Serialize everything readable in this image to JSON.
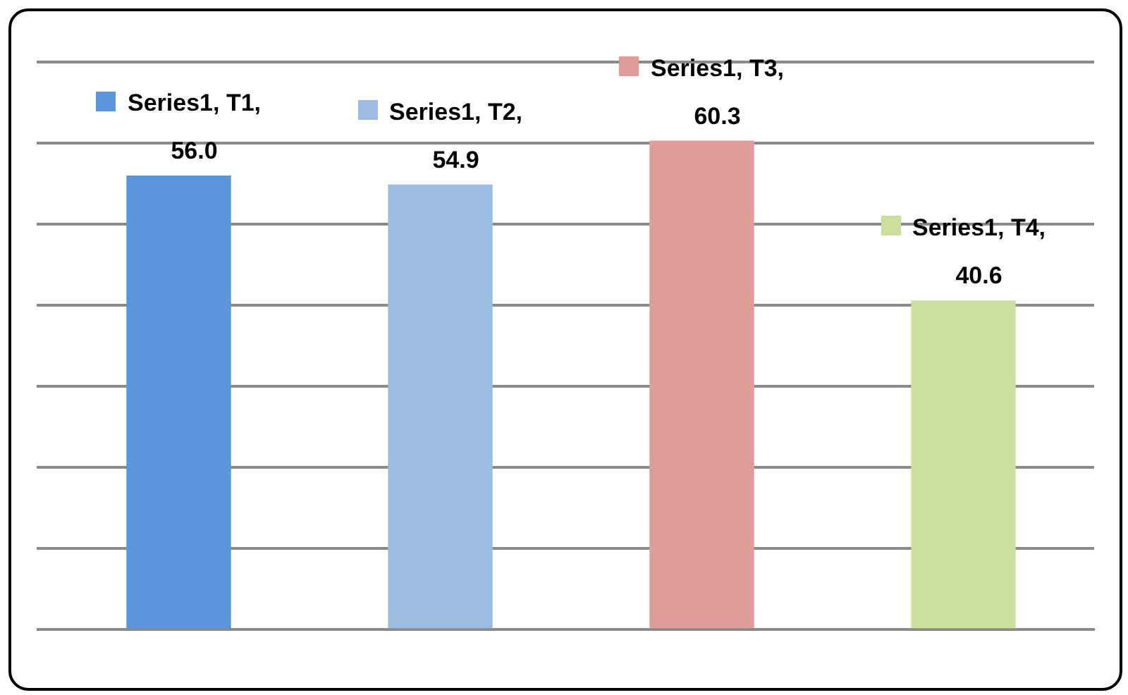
{
  "chart_data": {
    "type": "bar",
    "categories": [
      null,
      null,
      null,
      null
    ],
    "series": [
      {
        "colors": [
          "#5b96dc",
          "#9dbbe0",
          "#e09c9a",
          "#cddf9e"
        ],
        "values": [
          56.0,
          54.9,
          60.3,
          40.6
        ],
        "value_labels": [
          "Series1, T1, 56.0",
          "Series1, T2, 54.9",
          "Series1, T3, 60.3",
          "Series1, T4, 40.6"
        ]
      }
    ],
    "ylim": [
      0,
      70
    ],
    "yticks": [
      {
        "value": 0,
        "label": null
      },
      {
        "value": 10,
        "label": null
      },
      {
        "value": 20,
        "label": null
      },
      {
        "value": 30,
        "label": null
      },
      {
        "value": 40,
        "label": null
      },
      {
        "value": 50,
        "label": null
      },
      {
        "value": 60,
        "label": null
      },
      {
        "value": 70,
        "label": null
      }
    ],
    "grid": "y",
    "legend": false
  }
}
